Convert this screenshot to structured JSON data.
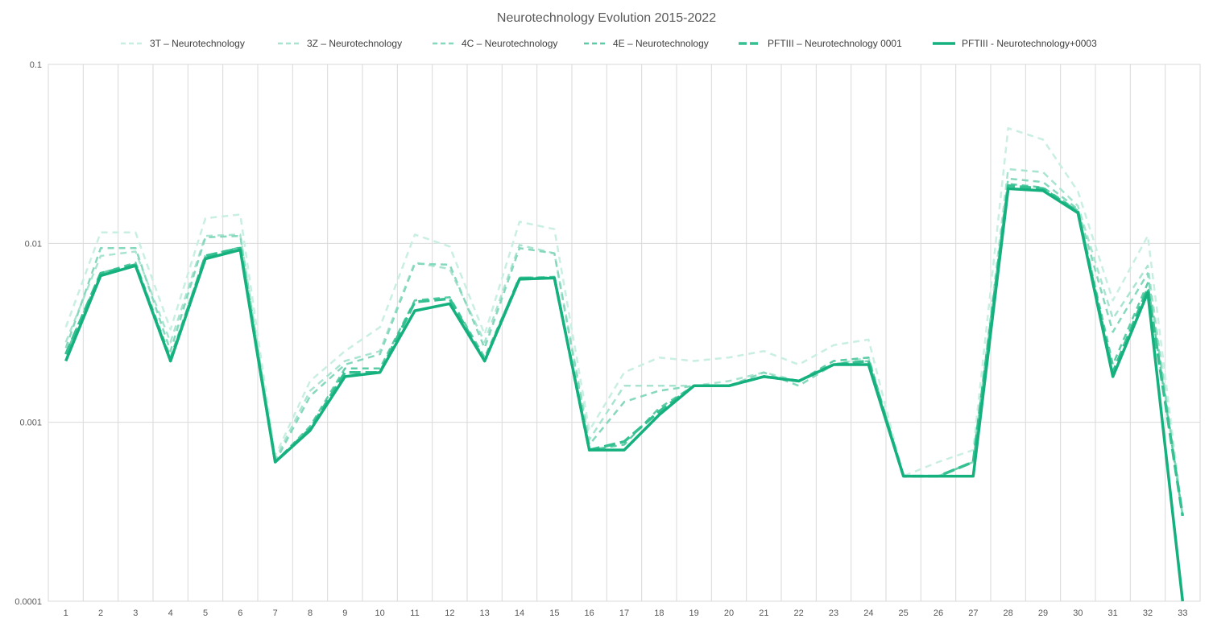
{
  "chart_data": {
    "type": "line",
    "title": "Neurotechnology  Evolution 2015-2022",
    "xlabel": "",
    "ylabel": "",
    "y_scale": "log",
    "ylim": [
      0.0001,
      0.1
    ],
    "y_ticks": [
      "0.0001",
      "0.001",
      "0.01",
      "0.1"
    ],
    "grid": true,
    "legend_position": "top",
    "x": [
      "1",
      "2",
      "3",
      "4",
      "5",
      "6",
      "7",
      "8",
      "9",
      "10",
      "11",
      "12",
      "13",
      "14",
      "15",
      "16",
      "17",
      "18",
      "19",
      "20",
      "21",
      "22",
      "23",
      "24",
      "25",
      "26",
      "27",
      "28",
      "29",
      "30",
      "31",
      "32",
      "33"
    ],
    "series": [
      {
        "name": "3T – Neurotechnology",
        "color": "#c9eee2",
        "dash": "dashed",
        "width": "thin",
        "values": [
          0.0034,
          0.0115,
          0.0115,
          0.0033,
          0.0138,
          0.0145,
          0.00065,
          0.0017,
          0.0025,
          0.0034,
          0.0112,
          0.0096,
          0.0031,
          0.0132,
          0.012,
          0.0009,
          0.0019,
          0.0023,
          0.0022,
          0.0023,
          0.0025,
          0.0021,
          0.0027,
          0.0029,
          0.0005,
          0.0006,
          0.0007,
          0.044,
          0.038,
          0.0195,
          0.0048,
          0.011,
          0.0003
        ]
      },
      {
        "name": "3Z – Neurotechnology",
        "color": "#a9e4d0",
        "dash": "dashed",
        "width": "thin",
        "values": [
          0.0028,
          0.0085,
          0.009,
          0.0028,
          0.011,
          0.0112,
          0.00062,
          0.0015,
          0.0022,
          0.0025,
          0.0078,
          0.0072,
          0.0028,
          0.0098,
          0.0088,
          0.0008,
          0.0016,
          0.0016,
          0.0016,
          0.0017,
          0.0019,
          0.0017,
          0.0021,
          0.0023,
          0.0005,
          0.0005,
          0.0006,
          0.026,
          0.025,
          0.0162,
          0.0038,
          0.0075,
          0.0003
        ]
      },
      {
        "name": "4C – Neurotechnology",
        "color": "#86d8bd",
        "dash": "dashed",
        "width": "thin",
        "values": [
          0.0026,
          0.0094,
          0.0094,
          0.0025,
          0.0108,
          0.011,
          0.0006,
          0.0014,
          0.0021,
          0.0024,
          0.0077,
          0.0076,
          0.0026,
          0.0094,
          0.0088,
          0.00075,
          0.0013,
          0.0015,
          0.0016,
          0.0016,
          0.0019,
          0.0016,
          0.0021,
          0.0022,
          0.0005,
          0.0005,
          0.0006,
          0.023,
          0.022,
          0.0155,
          0.0032,
          0.0068,
          0.0003
        ]
      },
      {
        "name": "4E – Neurotechnology",
        "color": "#5ccba6",
        "dash": "dashed",
        "width": "thin",
        "values": [
          0.0024,
          0.0068,
          0.0078,
          0.0023,
          0.0085,
          0.0095,
          0.0006,
          0.00095,
          0.002,
          0.002,
          0.0048,
          0.005,
          0.0023,
          0.0064,
          0.0065,
          0.0007,
          0.00075,
          0.0012,
          0.0016,
          0.0016,
          0.0018,
          0.0017,
          0.0022,
          0.0023,
          0.0005,
          0.0005,
          0.0006,
          0.0215,
          0.0205,
          0.0152,
          0.0021,
          0.006,
          0.0003
        ]
      },
      {
        "name": "PFTIII – Neurotechnology 0001",
        "color": "#34c090",
        "dash": "longdash",
        "width": "medium",
        "values": [
          0.0024,
          0.0068,
          0.0076,
          0.0022,
          0.0085,
          0.0094,
          0.0006,
          0.00092,
          0.0019,
          0.0019,
          0.0047,
          0.0049,
          0.0022,
          0.0064,
          0.0064,
          0.0007,
          0.00078,
          0.00115,
          0.0016,
          0.0016,
          0.0018,
          0.0017,
          0.0021,
          0.0022,
          0.0005,
          0.0005,
          0.0006,
          0.021,
          0.0202,
          0.015,
          0.0019,
          0.0056,
          0.0003
        ]
      },
      {
        "name": "PFTIII - Neurotechnology+0003",
        "color": "#14b07e",
        "dash": "solid",
        "width": "thick",
        "values": [
          0.0022,
          0.0066,
          0.0075,
          0.0022,
          0.0082,
          0.0092,
          0.0006,
          0.0009,
          0.0018,
          0.0019,
          0.0042,
          0.0046,
          0.0022,
          0.0063,
          0.0064,
          0.0007,
          0.0007,
          0.0011,
          0.0016,
          0.0016,
          0.0018,
          0.0017,
          0.0021,
          0.0021,
          0.0005,
          0.0005,
          0.0005,
          0.0202,
          0.0197,
          0.0148,
          0.0018,
          0.0053,
          0.0001
        ]
      }
    ]
  }
}
